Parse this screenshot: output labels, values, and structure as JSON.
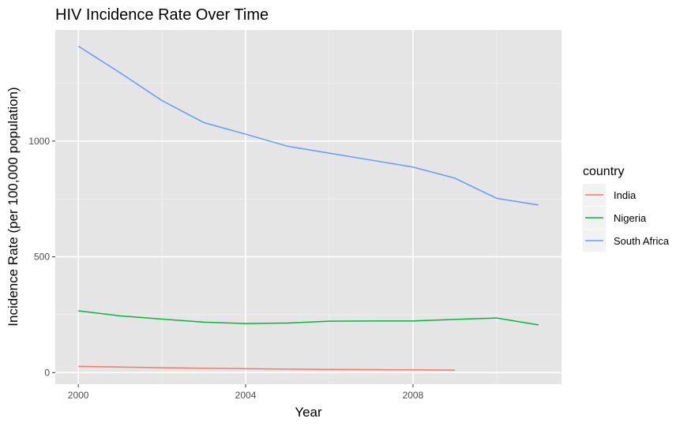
{
  "chart_data": {
    "type": "line",
    "title": "HIV Incidence Rate Over Time",
    "xlabel": "Year",
    "ylabel": "Incidence Rate (per 100,000 population)",
    "xlim": [
      1999.45,
      2011.55
    ],
    "ylim": [
      -50,
      1480
    ],
    "xticks": [
      2000,
      2004,
      2008
    ],
    "yticks": [
      0,
      500,
      1000
    ],
    "grid": true,
    "legend": {
      "title": "country",
      "placement": "right"
    },
    "series": [
      {
        "name": "India",
        "color": "#F8766D",
        "x": [
          2000,
          2001,
          2002,
          2003,
          2004,
          2005,
          2006,
          2007,
          2008,
          2009
        ],
        "y": [
          27,
          24,
          21,
          19,
          17,
          15,
          14,
          13,
          12,
          11
        ]
      },
      {
        "name": "Nigeria",
        "color": "#00BA38",
        "x": [
          2000,
          2001,
          2002,
          2003,
          2004,
          2005,
          2006,
          2007,
          2008,
          2009,
          2010,
          2011
        ],
        "y": [
          267,
          245,
          231,
          218,
          212,
          214,
          222,
          223,
          223,
          230,
          236,
          206
        ]
      },
      {
        "name": "South Africa",
        "color": "#619CFF",
        "x": [
          2000,
          2001,
          2002,
          2003,
          2004,
          2005,
          2006,
          2007,
          2008,
          2009,
          2010,
          2011
        ],
        "y": [
          1410,
          1295,
          1175,
          1080,
          1030,
          978,
          948,
          918,
          888,
          840,
          753,
          724
        ]
      }
    ]
  }
}
